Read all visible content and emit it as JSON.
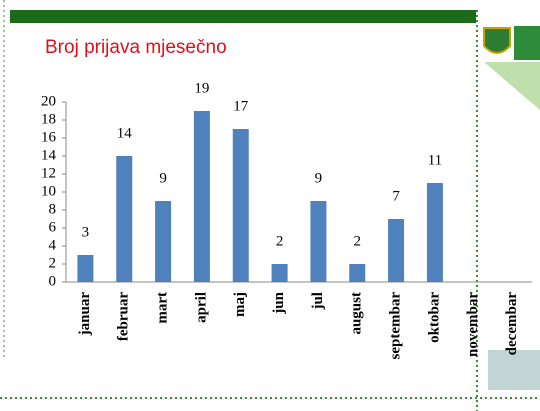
{
  "chart_data": {
    "type": "bar",
    "title": "Broj prijava mjesečno",
    "categories": [
      "januar",
      "februar",
      "mart",
      "april",
      "maj",
      "jun",
      "jul",
      "august",
      "septembar",
      "oktobar",
      "novembar",
      "decembar"
    ],
    "values": [
      3,
      14,
      9,
      19,
      17,
      2,
      9,
      2,
      7,
      11,
      null,
      null
    ],
    "color": "#4f81bd",
    "ylim": [
      0,
      20
    ],
    "yticks": [
      0,
      2,
      4,
      6,
      8,
      10,
      12,
      14,
      16,
      18,
      20
    ],
    "grid": false
  }
}
